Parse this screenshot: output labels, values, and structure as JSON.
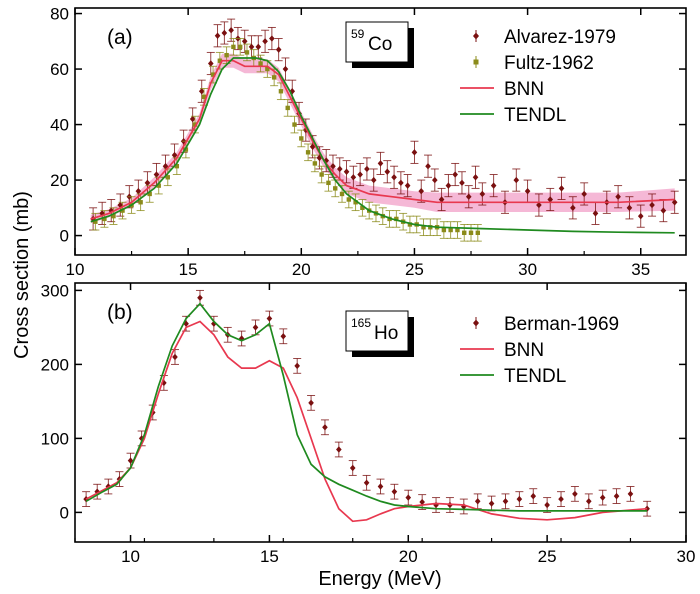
{
  "chart_data": [
    {
      "type": "scatter",
      "panel_label": "(a)",
      "nucleus": {
        "mass": "59",
        "symbol": "Co"
      },
      "xlabel": "Energy (MeV)",
      "ylabel": "Cross section (mb)",
      "xlim": [
        10,
        37
      ],
      "ylim": [
        -7,
        82
      ],
      "xticks": [
        10,
        15,
        20,
        25,
        30,
        35
      ],
      "yticks": [
        0,
        20,
        40,
        60,
        80
      ],
      "legend_position": "top-right",
      "series": [
        {
          "name": "Alvarez-1979",
          "kind": "points",
          "marker": "diamond",
          "color": "#7a1010",
          "x": [
            10.8,
            11.2,
            11.6,
            12.0,
            12.4,
            12.8,
            13.2,
            13.6,
            14.0,
            14.4,
            14.8,
            15.2,
            15.6,
            16.0,
            16.3,
            16.6,
            16.9,
            17.2,
            17.5,
            17.8,
            18.1,
            18.4,
            18.7,
            19.0,
            19.3,
            19.6,
            19.9,
            20.2,
            20.5,
            20.8,
            21.1,
            21.4,
            21.7,
            22.0,
            22.3,
            22.6,
            22.9,
            23.2,
            23.5,
            23.8,
            24.1,
            24.4,
            24.7,
            25.0,
            25.3,
            25.6,
            25.9,
            26.2,
            26.5,
            26.8,
            27.1,
            27.4,
            27.7,
            28.0,
            28.5,
            29.0,
            29.5,
            30.0,
            30.5,
            31.0,
            31.5,
            32.0,
            32.5,
            33.0,
            33.5,
            34.0,
            34.5,
            35.0,
            35.5,
            36.0,
            36.5
          ],
          "y": [
            6,
            8,
            9,
            11,
            14,
            16,
            19,
            22,
            25,
            29,
            34,
            42,
            52,
            62,
            72,
            73,
            74,
            71,
            70,
            68,
            68,
            70,
            71,
            67,
            60,
            52,
            44,
            38,
            32,
            28,
            27,
            25,
            24,
            23,
            21,
            22,
            24,
            20,
            26,
            23,
            21,
            19,
            18,
            30,
            16,
            25,
            20,
            13,
            18,
            22,
            19,
            14,
            21,
            15,
            18,
            12,
            20,
            16,
            11,
            13,
            17,
            10,
            15,
            8,
            12,
            14,
            10,
            7,
            11,
            9,
            12
          ],
          "err": 4
        },
        {
          "name": "Fultz-1962",
          "kind": "points",
          "marker": "square",
          "color": "#8b8b1a",
          "x": [
            10.9,
            11.3,
            11.7,
            12.1,
            12.5,
            12.9,
            13.3,
            13.7,
            14.1,
            14.5,
            14.9,
            15.3,
            15.7,
            16.1,
            16.4,
            16.7,
            17.0,
            17.3,
            17.6,
            17.9,
            18.2,
            18.5,
            18.8,
            19.1,
            19.4,
            19.7,
            20.0,
            20.3,
            20.6,
            20.9,
            21.2,
            21.5,
            21.8,
            22.1,
            22.4,
            22.7,
            23.0,
            23.3,
            23.6,
            23.9,
            24.2,
            24.5,
            24.8,
            25.1,
            25.4,
            25.7,
            26.0,
            26.3,
            26.6,
            26.9,
            27.2,
            27.5,
            27.8
          ],
          "y": [
            5,
            6,
            7,
            9,
            11,
            12,
            15,
            18,
            21,
            25,
            31,
            40,
            50,
            58,
            63,
            65,
            68,
            68,
            66,
            64,
            62,
            60,
            57,
            52,
            46,
            40,
            35,
            30,
            26,
            22,
            19,
            17,
            15,
            13,
            12,
            10,
            9,
            8,
            7,
            6,
            6,
            5,
            4,
            4,
            3,
            3,
            3,
            2,
            2,
            2,
            1,
            1,
            1
          ],
          "err": 3
        },
        {
          "name": "BNN",
          "kind": "line_band",
          "color": "#e8384f",
          "band_color": "#f2a0c8",
          "x": [
            10.7,
            11.5,
            12.5,
            13.5,
            14.5,
            15.5,
            16.0,
            16.5,
            17.0,
            17.5,
            18.0,
            18.5,
            19.0,
            19.5,
            20.0,
            20.5,
            21.0,
            21.5,
            22.0,
            23.0,
            24.0,
            25.0,
            26.0,
            28.0,
            30.0,
            32.0,
            34.0,
            36.5
          ],
          "y": [
            6,
            8,
            12,
            19,
            28,
            42,
            55,
            63,
            63,
            61,
            61,
            61,
            58,
            50,
            42,
            34,
            27,
            22,
            18,
            15,
            14,
            13,
            12,
            12,
            12,
            12,
            12,
            13
          ],
          "band": [
            1.5,
            1.5,
            1.5,
            2,
            2,
            2,
            2.5,
            2.5,
            2.5,
            2.5,
            2.5,
            2.5,
            2.5,
            2.5,
            2.5,
            2.5,
            2.5,
            2.5,
            3,
            3,
            3,
            3,
            3.5,
            3.5,
            3.5,
            3.5,
            3.5,
            4
          ]
        },
        {
          "name": "TENDL",
          "kind": "line",
          "color": "#1f8a1f",
          "x": [
            10.7,
            11.5,
            12.5,
            13.5,
            14.5,
            15.5,
            16.0,
            16.5,
            17.0,
            17.5,
            18.0,
            18.5,
            19.0,
            19.5,
            20.0,
            20.5,
            21.0,
            21.5,
            22.0,
            23.0,
            24.0,
            25.0,
            26.0,
            28.0,
            30.0,
            32.0,
            34.0,
            36.5
          ],
          "y": [
            5,
            7,
            11,
            17,
            26,
            40,
            51,
            60,
            64,
            64,
            64,
            63,
            59,
            52,
            43,
            35,
            27,
            20,
            15,
            9,
            6,
            4,
            3,
            2.5,
            2,
            1.5,
            1.2,
            1
          ]
        }
      ]
    },
    {
      "type": "scatter",
      "panel_label": "(b)",
      "nucleus": {
        "mass": "165",
        "symbol": "Ho"
      },
      "xlabel": "Energy (MeV)",
      "ylabel": "Cross section (mb)",
      "xlim": [
        8,
        30
      ],
      "ylim": [
        -40,
        310
      ],
      "xticks": [
        10,
        15,
        20,
        25,
        30
      ],
      "yticks": [
        0,
        100,
        200,
        300
      ],
      "legend_position": "top-right",
      "series": [
        {
          "name": "Berman-1969",
          "kind": "points",
          "marker": "diamond",
          "color": "#7a1010",
          "x": [
            8.4,
            8.8,
            9.2,
            9.6,
            10.0,
            10.4,
            10.8,
            11.2,
            11.6,
            12.0,
            12.5,
            13.0,
            13.5,
            14.0,
            14.5,
            15.0,
            15.5,
            16.0,
            16.5,
            17.0,
            17.5,
            18.0,
            18.5,
            19.0,
            19.5,
            20.0,
            20.5,
            21.0,
            21.5,
            22.0,
            22.5,
            23.0,
            23.5,
            24.0,
            24.5,
            25.0,
            25.5,
            26.0,
            26.5,
            27.0,
            27.5,
            28.0,
            28.6
          ],
          "y": [
            18,
            28,
            35,
            45,
            70,
            100,
            135,
            175,
            210,
            255,
            290,
            255,
            240,
            235,
            250,
            262,
            238,
            198,
            148,
            115,
            85,
            60,
            40,
            35,
            28,
            20,
            14,
            10,
            10,
            8,
            15,
            12,
            15,
            18,
            22,
            10,
            18,
            25,
            15,
            20,
            22,
            25,
            5
          ],
          "err": 10
        },
        {
          "name": "BNN",
          "kind": "line",
          "color": "#e8384f",
          "x": [
            8.4,
            9.0,
            9.5,
            10.0,
            10.5,
            11.0,
            11.5,
            12.0,
            12.5,
            13.0,
            13.5,
            14.0,
            14.5,
            15.0,
            15.5,
            16.0,
            16.5,
            17.0,
            17.5,
            18.0,
            18.5,
            19.0,
            19.5,
            20.0,
            21.0,
            22.0,
            23.0,
            24.0,
            25.0,
            26.0,
            27.0,
            28.6
          ],
          "y": [
            18,
            30,
            40,
            60,
            100,
            160,
            215,
            250,
            258,
            240,
            210,
            195,
            195,
            205,
            195,
            155,
            100,
            45,
            5,
            -12,
            -10,
            -2,
            5,
            8,
            12,
            10,
            -2,
            -8,
            -10,
            -7,
            0,
            5
          ]
        },
        {
          "name": "TENDL",
          "kind": "line",
          "color": "#1f8a1f",
          "x": [
            8.4,
            9.0,
            9.5,
            10.0,
            10.5,
            11.0,
            11.5,
            12.0,
            12.5,
            13.0,
            13.5,
            14.0,
            14.5,
            15.0,
            15.5,
            16.0,
            16.5,
            17.0,
            17.5,
            18.0,
            18.5,
            19.0,
            19.5,
            20.0,
            21.0,
            22.0,
            23.0,
            24.0,
            25.0,
            26.0,
            27.0,
            28.6
          ],
          "y": [
            15,
            28,
            38,
            60,
            105,
            170,
            225,
            262,
            282,
            258,
            240,
            232,
            240,
            255,
            185,
            105,
            65,
            48,
            38,
            30,
            22,
            15,
            10,
            8,
            5,
            4,
            3,
            2,
            2,
            2,
            2,
            2
          ]
        }
      ]
    }
  ]
}
